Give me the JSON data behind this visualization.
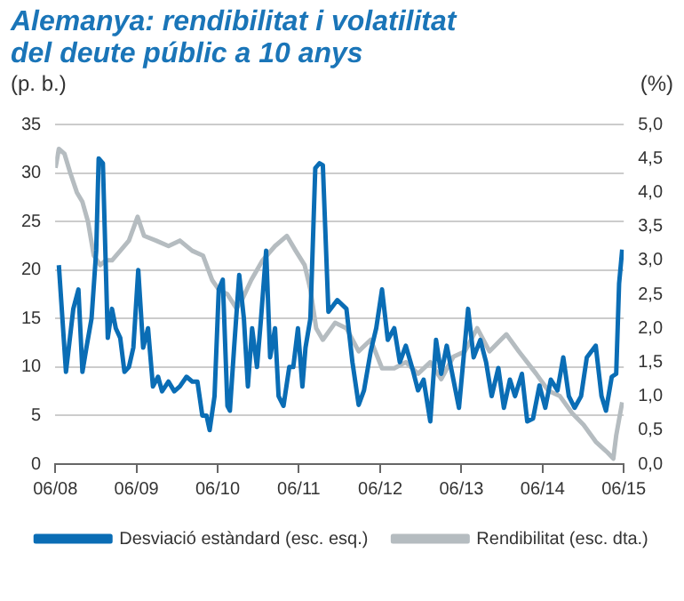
{
  "chart_data": {
    "type": "line",
    "title": "Alemanya: rendibilitat i volatilitat del deute públic a 10 anys",
    "ylabel": "(p. b.)",
    "y2label": "(%)",
    "series": [
      {
        "name": "Desviació estàndard (esc. esq.)",
        "color": "#0a6db5",
        "x": [
          "2008-06-17",
          "2008-07-19",
          "2008-08-21",
          "2008-09-13",
          "2008-10-01",
          "2008-10-19",
          "2008-11-11",
          "2008-12-02",
          "2008-12-13",
          "2009-01-01",
          "2009-01-23",
          "2009-02-11",
          "2009-02-28",
          "2009-03-20",
          "2009-04-08",
          "2009-04-28",
          "2009-05-18",
          "2009-06-09",
          "2009-07-01",
          "2009-07-23",
          "2009-08-14",
          "2009-09-06",
          "2009-09-24",
          "2009-10-23",
          "2009-11-18",
          "2009-12-13",
          "2010-01-12",
          "2010-02-07",
          "2010-03-02",
          "2010-03-24",
          "2010-04-12",
          "2010-04-26",
          "2010-05-18",
          "2010-06-06",
          "2010-06-24",
          "2010-07-15",
          "2010-07-26",
          "2010-08-14",
          "2010-09-06",
          "2010-09-27",
          "2010-10-15",
          "2010-11-03",
          "2010-11-25",
          "2010-12-13",
          "2011-01-05",
          "2011-01-23",
          "2011-02-14",
          "2011-03-02",
          "2011-03-24",
          "2011-04-19",
          "2011-05-07",
          "2011-05-28",
          "2011-06-17",
          "2011-07-01",
          "2011-07-23",
          "2011-08-14",
          "2011-09-02",
          "2011-09-17",
          "2011-10-12",
          "2011-11-21",
          "2012-01-01",
          "2012-01-28",
          "2012-02-25",
          "2012-03-20",
          "2012-04-19",
          "2012-05-14",
          "2012-06-09",
          "2012-07-05",
          "2012-08-03",
          "2012-08-28",
          "2012-09-24",
          "2012-10-23",
          "2012-11-18",
          "2012-12-13",
          "2013-01-12",
          "2013-02-07",
          "2013-03-02",
          "2013-03-27",
          "2013-04-26",
          "2013-05-21",
          "2013-07-01",
          "2013-07-26",
          "2013-08-25",
          "2013-09-20",
          "2013-10-15",
          "2013-11-14",
          "2013-12-09",
          "2014-01-05",
          "2014-01-28",
          "2014-02-28",
          "2014-03-24",
          "2014-04-19",
          "2014-05-18",
          "2014-06-13",
          "2014-07-08",
          "2014-08-07",
          "2014-09-02",
          "2014-09-27",
          "2014-10-23",
          "2014-11-21",
          "2014-12-17",
          "2015-01-26",
          "2015-02-21",
          "2015-03-13",
          "2015-04-08",
          "2015-04-28",
          "2015-05-11",
          "2015-05-25"
        ],
        "values": [
          20.5,
          9.5,
          16,
          18,
          9.5,
          12,
          15,
          22,
          31.5,
          31,
          13,
          16,
          14,
          13,
          9.5,
          10,
          12,
          20,
          12,
          14,
          8,
          9,
          7.5,
          8.5,
          7.5,
          8,
          9,
          8.5,
          8.5,
          5,
          5,
          3.5,
          7,
          18,
          19,
          6,
          5.5,
          12,
          19.5,
          15,
          8,
          14,
          10,
          15,
          22,
          11,
          14,
          7,
          6,
          10,
          10,
          14,
          8,
          12,
          15,
          30.5,
          31,
          30.8,
          15.7,
          16.9,
          16,
          10.5,
          6.1,
          7.6,
          11.6,
          14,
          18,
          12.8,
          14,
          10.5,
          12.2,
          9.9,
          7.6,
          8.7,
          4.4,
          12.8,
          9.3,
          12.2,
          8.7,
          5.8,
          16,
          11,
          12.8,
          10.5,
          7,
          9.9,
          5.8,
          8.7,
          7,
          9.3,
          4.4,
          4.7,
          8.1,
          5.8,
          8.7,
          7.6,
          11,
          7,
          5.8,
          7,
          11,
          12.2,
          7,
          5.5,
          9,
          9.3,
          18.6,
          22.1
        ]
      },
      {
        "name": "Rendibilitat (esc. dta.)",
        "color": "#b5bcc0",
        "axis": "y2",
        "x": [
          "2008-06-02",
          "2008-06-17",
          "2008-07-12",
          "2008-08-07",
          "2008-09-06",
          "2008-10-01",
          "2008-10-26",
          "2008-11-21",
          "2008-12-20",
          "2009-01-15",
          "2009-02-11",
          "2009-03-20",
          "2009-04-28",
          "2009-06-06",
          "2009-07-05",
          "2009-08-28",
          "2009-10-23",
          "2009-12-13",
          "2010-02-07",
          "2010-03-27",
          "2010-05-07",
          "2010-06-06",
          "2010-07-15",
          "2010-08-25",
          "2010-09-20",
          "2010-10-30",
          "2010-12-20",
          "2011-02-14",
          "2011-04-08",
          "2011-05-18",
          "2011-06-27",
          "2011-07-23",
          "2011-08-18",
          "2011-09-17",
          "2011-11-11",
          "2012-01-01",
          "2012-02-25",
          "2012-04-19",
          "2012-06-09",
          "2012-08-03",
          "2012-09-24",
          "2012-11-18",
          "2013-01-12",
          "2013-03-02",
          "2013-04-26",
          "2013-06-17",
          "2013-08-11",
          "2013-10-05",
          "2013-11-25",
          "2013-12-20",
          "2014-02-14",
          "2014-05-03",
          "2014-06-27",
          "2014-08-18",
          "2014-10-12",
          "2014-12-02",
          "2015-01-26",
          "2015-03-20",
          "2015-04-15",
          "2015-04-28",
          "2015-05-11",
          "2015-05-25"
        ],
        "values": [
          4.36,
          4.64,
          4.57,
          4.29,
          4.0,
          3.86,
          3.57,
          3.07,
          2.93,
          3.0,
          3.0,
          3.14,
          3.29,
          3.64,
          3.36,
          3.29,
          3.21,
          3.29,
          3.14,
          3.07,
          2.71,
          2.57,
          2.5,
          2.29,
          2.43,
          2.71,
          3.0,
          3.21,
          3.36,
          3.14,
          2.93,
          2.57,
          2.0,
          1.83,
          2.08,
          2.0,
          1.66,
          1.83,
          1.41,
          1.41,
          1.5,
          1.33,
          1.5,
          1.25,
          1.58,
          1.66,
          2.0,
          1.66,
          1.83,
          1.91,
          1.66,
          1.33,
          1.08,
          1.0,
          0.75,
          0.58,
          0.33,
          0.17,
          0.08,
          0.42,
          0.66,
          0.91
        ]
      }
    ],
    "xlim": [
      "2008-06",
      "2015-06"
    ],
    "xticks": [
      {
        "value": "2008-06",
        "label": "06/08"
      },
      {
        "value": "2009-06",
        "label": "06/09"
      },
      {
        "value": "2010-06",
        "label": "06/10"
      },
      {
        "value": "2011-06",
        "label": "06/11"
      },
      {
        "value": "2012-06",
        "label": "06/12"
      },
      {
        "value": "2013-06",
        "label": "06/13"
      },
      {
        "value": "2014-06",
        "label": "06/14"
      },
      {
        "value": "2015-06",
        "label": "06/15"
      }
    ],
    "ylim": [
      0,
      35
    ],
    "yticks": [
      0,
      5,
      10,
      15,
      20,
      25,
      30,
      35
    ],
    "y2lim": [
      0,
      5
    ],
    "y2ticks": [
      {
        "value": 0,
        "label": "0,0"
      },
      {
        "value": 0.5,
        "label": "0,5"
      },
      {
        "value": 1,
        "label": "1,0"
      },
      {
        "value": 1.5,
        "label": "1,5"
      },
      {
        "value": 2,
        "label": "2,0"
      },
      {
        "value": 2.5,
        "label": "2,5"
      },
      {
        "value": 3,
        "label": "3,0"
      },
      {
        "value": 3.5,
        "label": "3,5"
      },
      {
        "value": 4,
        "label": "4,0"
      },
      {
        "value": 4.5,
        "label": "4,5"
      },
      {
        "value": 5,
        "label": "5,0"
      }
    ],
    "grid": "y",
    "legend": "bottom",
    "marker": "none",
    "line_style": "solid"
  }
}
